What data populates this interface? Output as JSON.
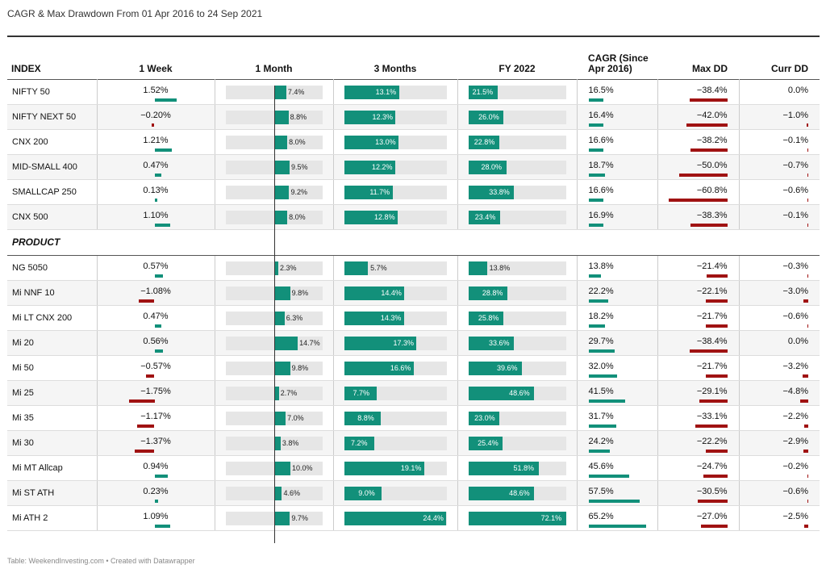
{
  "title": "CAGR & Max Drawdown From 01 Apr 2016 to 24 Sep 2021",
  "footer": "Table: WeekendInvesting.com • Created with Datawrapper",
  "columns": {
    "index": "INDEX",
    "week": "1 Week",
    "month": "1 Month",
    "three_months": "3 Months",
    "fy": "FY 2022",
    "cagr": "CAGR (Since Apr 2016)",
    "maxdd": "Max DD",
    "currdd": "Curr DD"
  },
  "section_label": "PRODUCT",
  "colors": {
    "positive": "#12907a",
    "negative": "#a01212",
    "track": "#e6e6e6"
  },
  "chart_data": {
    "type": "table",
    "groups": [
      {
        "name": "INDEX",
        "rows": [
          {
            "name": "NIFTY 50",
            "week": "1.52%",
            "month": "7.4%",
            "m3": "13.1%",
            "fy": "21.5%",
            "cagr": "16.5%",
            "maxdd": "−38.4%",
            "currdd": "0.0%"
          },
          {
            "name": "NIFTY NEXT 50",
            "week": "−0.20%",
            "month": "8.8%",
            "m3": "12.3%",
            "fy": "26.0%",
            "cagr": "16.4%",
            "maxdd": "−42.0%",
            "currdd": "−1.0%"
          },
          {
            "name": "CNX 200",
            "week": "1.21%",
            "month": "8.0%",
            "m3": "13.0%",
            "fy": "22.8%",
            "cagr": "16.6%",
            "maxdd": "−38.2%",
            "currdd": "−0.1%"
          },
          {
            "name": "MID-SMALL 400",
            "week": "0.47%",
            "month": "9.5%",
            "m3": "12.2%",
            "fy": "28.0%",
            "cagr": "18.7%",
            "maxdd": "−50.0%",
            "currdd": "−0.7%"
          },
          {
            "name": "SMALLCAP 250",
            "week": "0.13%",
            "month": "9.2%",
            "m3": "11.7%",
            "fy": "33.8%",
            "cagr": "16.6%",
            "maxdd": "−60.8%",
            "currdd": "−0.6%"
          },
          {
            "name": "CNX 500",
            "week": "1.10%",
            "month": "8.0%",
            "m3": "12.8%",
            "fy": "23.4%",
            "cagr": "16.9%",
            "maxdd": "−38.3%",
            "currdd": "−0.1%"
          }
        ]
      },
      {
        "name": "PRODUCT",
        "rows": [
          {
            "name": "NG 5050",
            "week": "0.57%",
            "month": "2.3%",
            "m3": "5.7%",
            "fy": "13.8%",
            "cagr": "13.8%",
            "maxdd": "−21.4%",
            "currdd": "−0.3%"
          },
          {
            "name": "Mi NNF 10",
            "week": "−1.08%",
            "month": "9.8%",
            "m3": "14.4%",
            "fy": "28.8%",
            "cagr": "22.2%",
            "maxdd": "−22.1%",
            "currdd": "−3.0%"
          },
          {
            "name": "Mi LT CNX 200",
            "week": "0.47%",
            "month": "6.3%",
            "m3": "14.3%",
            "fy": "25.8%",
            "cagr": "18.2%",
            "maxdd": "−21.7%",
            "currdd": "−0.6%"
          },
          {
            "name": "Mi 20",
            "week": "0.56%",
            "month": "14.7%",
            "m3": "17.3%",
            "fy": "33.6%",
            "cagr": "29.7%",
            "maxdd": "−38.4%",
            "currdd": "0.0%"
          },
          {
            "name": "Mi 50",
            "week": "−0.57%",
            "month": "9.8%",
            "m3": "16.6%",
            "fy": "39.6%",
            "cagr": "32.0%",
            "maxdd": "−21.7%",
            "currdd": "−3.2%"
          },
          {
            "name": "Mi 25",
            "week": "−1.75%",
            "month": "2.7%",
            "m3": "7.7%",
            "fy": "48.6%",
            "cagr": "41.5%",
            "maxdd": "−29.1%",
            "currdd": "−4.8%"
          },
          {
            "name": "Mi 35",
            "week": "−1.17%",
            "month": "7.0%",
            "m3": "8.8%",
            "fy": "23.0%",
            "cagr": "31.7%",
            "maxdd": "−33.1%",
            "currdd": "−2.2%"
          },
          {
            "name": "Mi 30",
            "week": "−1.37%",
            "month": "3.8%",
            "m3": "7.2%",
            "fy": "25.4%",
            "cagr": "24.2%",
            "maxdd": "−22.2%",
            "currdd": "−2.9%"
          },
          {
            "name": "Mi MT Allcap",
            "week": "0.94%",
            "month": "10.0%",
            "m3": "19.1%",
            "fy": "51.8%",
            "cagr": "45.6%",
            "maxdd": "−24.7%",
            "currdd": "−0.2%"
          },
          {
            "name": "Mi ST ATH",
            "week": "0.23%",
            "month": "4.6%",
            "m3": "9.0%",
            "fy": "48.6%",
            "cagr": "57.5%",
            "maxdd": "−30.5%",
            "currdd": "−0.6%"
          },
          {
            "name": "Mi ATH 2",
            "week": "1.09%",
            "month": "9.7%",
            "m3": "24.4%",
            "fy": "72.1%",
            "cagr": "65.2%",
            "maxdd": "−27.0%",
            "currdd": "−2.5%"
          }
        ]
      }
    ]
  }
}
